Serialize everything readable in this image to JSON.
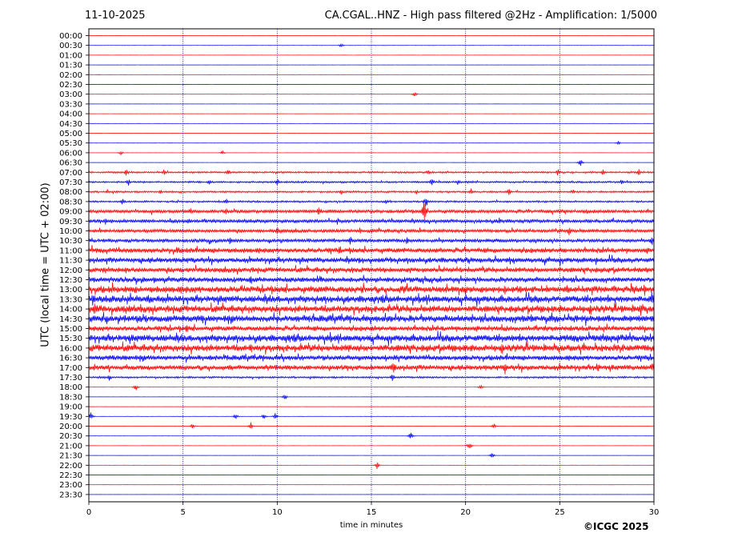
{
  "header": {
    "date": "11-10-2025",
    "title": "CA.CGAL..HNZ - High pass filtered @2Hz - Amplification: 1/5000"
  },
  "credit": "©ICGC 2025",
  "colors": {
    "red": "#ff0000",
    "blue": "#0000ff",
    "grid": "#000080"
  },
  "chart_data": {
    "type": "line",
    "xlabel": "time in minutes",
    "ylabel": "UTC (local time = UTC + 02:00)",
    "xlim": [
      0,
      30
    ],
    "x_ticks": [
      0,
      5,
      10,
      15,
      20,
      25,
      30
    ],
    "grid": "vertical dotted at each x tick",
    "row_labels": [
      "00:00",
      "00:30",
      "01:00",
      "01:30",
      "02:00",
      "02:30",
      "03:00",
      "03:30",
      "04:00",
      "04:30",
      "05:00",
      "05:30",
      "06:00",
      "06:30",
      "07:00",
      "07:30",
      "08:00",
      "08:30",
      "09:00",
      "09:30",
      "10:00",
      "10:30",
      "11:00",
      "11:30",
      "12:00",
      "12:30",
      "13:00",
      "13:30",
      "14:00",
      "14:30",
      "15:00",
      "15:30",
      "16:00",
      "16:30",
      "17:00",
      "17:30",
      "18:00",
      "18:30",
      "19:00",
      "19:30",
      "20:00",
      "20:30",
      "21:00",
      "21:30",
      "22:00",
      "22:30",
      "23:00",
      "23:30"
    ],
    "row_colors": "alternating red (even rows) and blue (odd rows)",
    "activity_levels": [
      0,
      0,
      0,
      0,
      0,
      0,
      0,
      0,
      0,
      0,
      0,
      0,
      0,
      0,
      1,
      1,
      1,
      1,
      2,
      2,
      2,
      2,
      3,
      3,
      3,
      3,
      4,
      4,
      4,
      4,
      3,
      4,
      4,
      3,
      3,
      1,
      0,
      0,
      0,
      0,
      0,
      0,
      0,
      0,
      0,
      0,
      0,
      0
    ],
    "events": [
      {
        "row": "00:30",
        "minute": 13.4,
        "amp": 3
      },
      {
        "row": "02:00",
        "minute": 0.5,
        "amp": 1
      },
      {
        "row": "03:00",
        "minute": 17.3,
        "amp": 4
      },
      {
        "row": "05:30",
        "minute": 28.1,
        "amp": 3
      },
      {
        "row": "06:00",
        "minute": 1.7,
        "amp": 3
      },
      {
        "row": "06:00",
        "minute": 7.1,
        "amp": 3
      },
      {
        "row": "06:30",
        "minute": 26.1,
        "amp": 5
      },
      {
        "row": "07:00",
        "minute": 2.0,
        "amp": 6
      },
      {
        "row": "07:00",
        "minute": 4.0,
        "amp": 5
      },
      {
        "row": "07:00",
        "minute": 7.4,
        "amp": 5
      },
      {
        "row": "07:00",
        "minute": 18.0,
        "amp": 5
      },
      {
        "row": "07:00",
        "minute": 24.9,
        "amp": 5
      },
      {
        "row": "07:00",
        "minute": 27.3,
        "amp": 5
      },
      {
        "row": "07:00",
        "minute": 29.2,
        "amp": 5
      },
      {
        "row": "07:30",
        "minute": 2.1,
        "amp": 6
      },
      {
        "row": "07:30",
        "minute": 6.4,
        "amp": 4
      },
      {
        "row": "07:30",
        "minute": 10.0,
        "amp": 6
      },
      {
        "row": "07:30",
        "minute": 18.2,
        "amp": 6
      },
      {
        "row": "07:30",
        "minute": 19.6,
        "amp": 5
      },
      {
        "row": "07:30",
        "minute": 28.3,
        "amp": 5
      },
      {
        "row": "08:00",
        "minute": 1.0,
        "amp": 4
      },
      {
        "row": "08:00",
        "minute": 3.8,
        "amp": 4
      },
      {
        "row": "08:00",
        "minute": 13.4,
        "amp": 4
      },
      {
        "row": "08:00",
        "minute": 17.4,
        "amp": 4
      },
      {
        "row": "08:00",
        "minute": 20.3,
        "amp": 5
      },
      {
        "row": "08:00",
        "minute": 22.3,
        "amp": 6
      },
      {
        "row": "08:00",
        "minute": 25.7,
        "amp": 4
      },
      {
        "row": "08:30",
        "minute": 1.8,
        "amp": 6
      },
      {
        "row": "08:30",
        "minute": 7.3,
        "amp": 5
      },
      {
        "row": "08:30",
        "minute": 15.8,
        "amp": 4
      },
      {
        "row": "08:30",
        "minute": 17.9,
        "amp": 8
      },
      {
        "row": "09:00",
        "minute": 5.4,
        "amp": 6
      },
      {
        "row": "09:00",
        "minute": 7.3,
        "amp": 6
      },
      {
        "row": "09:00",
        "minute": 12.2,
        "amp": 7
      },
      {
        "row": "09:00",
        "minute": 17.8,
        "amp": 18
      },
      {
        "row": "09:30",
        "minute": 0.9,
        "amp": 6
      },
      {
        "row": "09:30",
        "minute": 5.3,
        "amp": 6
      },
      {
        "row": "09:30",
        "minute": 13.2,
        "amp": 6
      },
      {
        "row": "09:30",
        "minute": 21.8,
        "amp": 5
      },
      {
        "row": "10:00",
        "minute": 10.0,
        "amp": 6
      },
      {
        "row": "10:00",
        "minute": 14.4,
        "amp": 6
      },
      {
        "row": "10:00",
        "minute": 25.5,
        "amp": 8
      },
      {
        "row": "10:30",
        "minute": 7.5,
        "amp": 6
      },
      {
        "row": "10:30",
        "minute": 13.9,
        "amp": 7
      },
      {
        "row": "10:30",
        "minute": 16.9,
        "amp": 7
      },
      {
        "row": "10:30",
        "minute": 29.9,
        "amp": 7
      },
      {
        "row": "11:00",
        "minute": 4.7,
        "amp": 7
      },
      {
        "row": "11:00",
        "minute": 13.3,
        "amp": 6
      },
      {
        "row": "11:30",
        "minute": 9.7,
        "amp": 7
      },
      {
        "row": "11:30",
        "minute": 24.3,
        "amp": 7
      },
      {
        "row": "12:00",
        "minute": 14.0,
        "amp": 6
      },
      {
        "row": "12:30",
        "minute": 8.6,
        "amp": 8
      },
      {
        "row": "12:30",
        "minute": 13.9,
        "amp": 7
      },
      {
        "row": "13:00",
        "minute": 29.5,
        "amp": 10
      },
      {
        "row": "13:30",
        "minute": 0.2,
        "amp": 10
      },
      {
        "row": "13:30",
        "minute": 29.9,
        "amp": 12
      },
      {
        "row": "14:00",
        "minute": 0.3,
        "amp": 10
      },
      {
        "row": "14:00",
        "minute": 29.3,
        "amp": 10
      },
      {
        "row": "14:30",
        "minute": 23.5,
        "amp": 9
      },
      {
        "row": "14:30",
        "minute": 5.0,
        "amp": 7
      },
      {
        "row": "15:00",
        "minute": 5.2,
        "amp": 7
      },
      {
        "row": "15:30",
        "minute": 10.6,
        "amp": 7
      },
      {
        "row": "15:30",
        "minute": 24.1,
        "amp": 6
      },
      {
        "row": "16:00",
        "minute": 8.6,
        "amp": 9
      },
      {
        "row": "16:00",
        "minute": 13.8,
        "amp": 7
      },
      {
        "row": "16:30",
        "minute": 20.0,
        "amp": 7
      },
      {
        "row": "17:00",
        "minute": 16.2,
        "amp": 10
      },
      {
        "row": "17:00",
        "minute": 22.1,
        "amp": 9
      },
      {
        "row": "17:00",
        "minute": 27.0,
        "amp": 11
      },
      {
        "row": "17:00",
        "minute": 29.9,
        "amp": 9
      },
      {
        "row": "17:30",
        "minute": 1.1,
        "amp": 5
      },
      {
        "row": "17:30",
        "minute": 16.1,
        "amp": 6
      },
      {
        "row": "18:00",
        "minute": 2.5,
        "amp": 5
      },
      {
        "row": "18:00",
        "minute": 20.8,
        "amp": 4
      },
      {
        "row": "18:30",
        "minute": 10.4,
        "amp": 5
      },
      {
        "row": "19:30",
        "minute": 0.1,
        "amp": 6
      },
      {
        "row": "19:30",
        "minute": 7.8,
        "amp": 4
      },
      {
        "row": "19:30",
        "minute": 9.3,
        "amp": 4
      },
      {
        "row": "19:30",
        "minute": 9.9,
        "amp": 5
      },
      {
        "row": "20:00",
        "minute": 5.5,
        "amp": 4
      },
      {
        "row": "20:00",
        "minute": 8.6,
        "amp": 5
      },
      {
        "row": "20:00",
        "minute": 21.5,
        "amp": 4
      },
      {
        "row": "20:30",
        "minute": 17.1,
        "amp": 6
      },
      {
        "row": "21:00",
        "minute": 20.2,
        "amp": 6
      },
      {
        "row": "21:30",
        "minute": 21.4,
        "amp": 4
      },
      {
        "row": "22:00",
        "minute": 15.3,
        "amp": 5
      }
    ]
  }
}
